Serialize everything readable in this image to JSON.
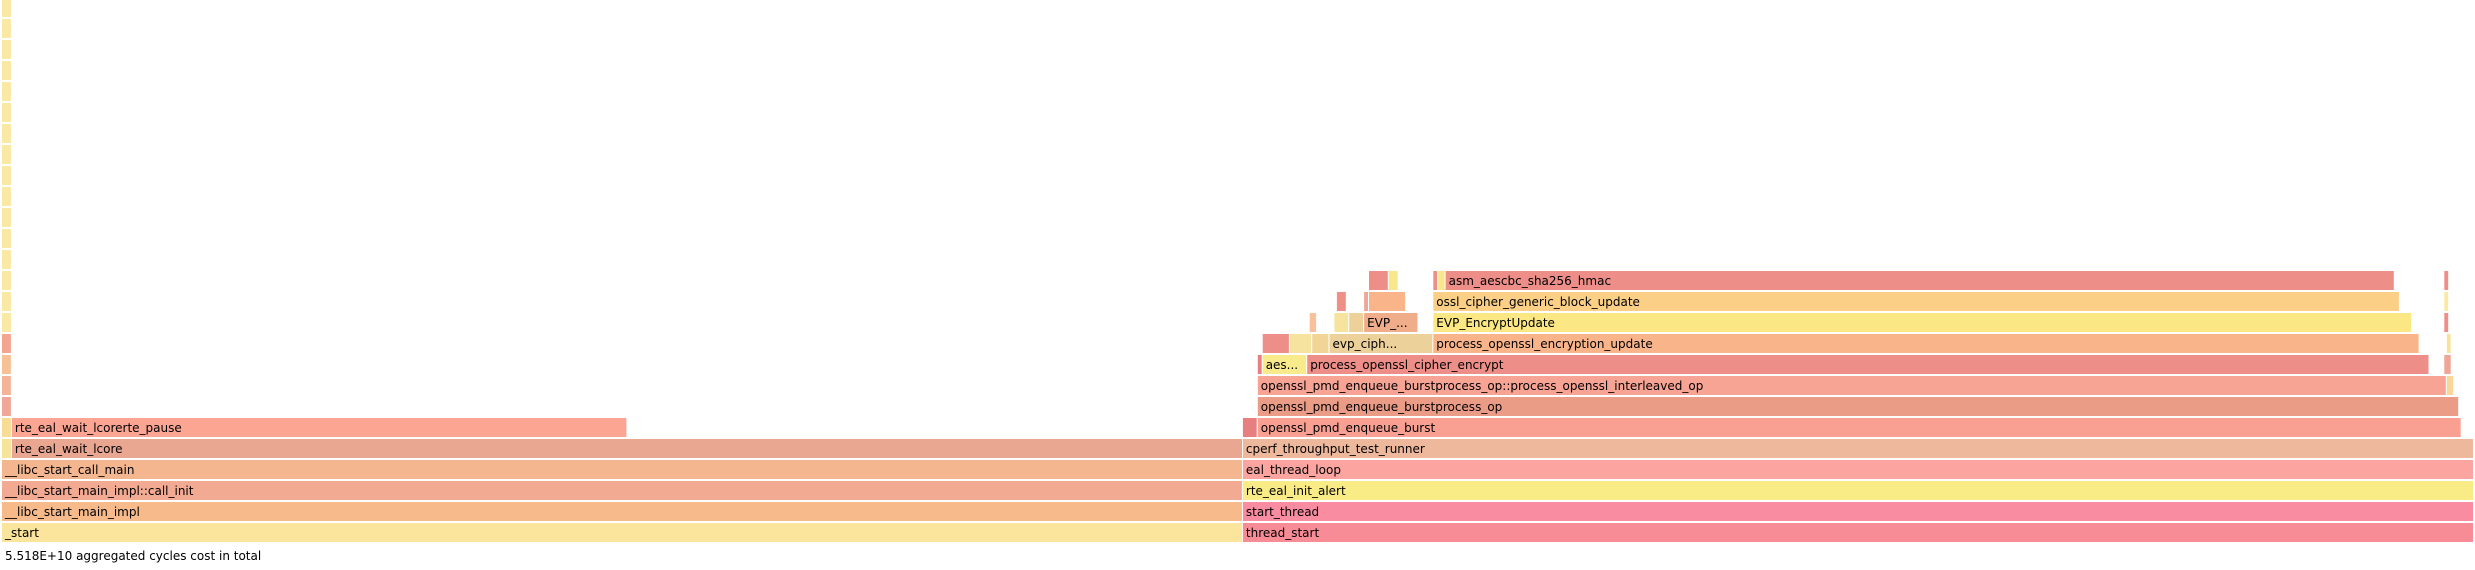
{
  "chart_data": {
    "type": "flamegraph",
    "total_units": 1000,
    "footer": "5.518E+10 aggregated cycles cost in total",
    "frames": [
      {
        "name": "_start",
        "depth": 0,
        "start": 0,
        "width": 502,
        "color": "#fbe49b"
      },
      {
        "name": "thread_start",
        "depth": 0,
        "start": 502,
        "width": 498,
        "color": "#f78c96"
      },
      {
        "name": "__libc_start_main_impl",
        "depth": 1,
        "start": 0,
        "width": 502,
        "color": "#f6ba8b"
      },
      {
        "name": "start_thread",
        "depth": 1,
        "start": 502,
        "width": 498,
        "color": "#f98ca0"
      },
      {
        "name": "__libc_start_main_impl::call_init",
        "depth": 2,
        "start": 0,
        "width": 502,
        "color": "#f3aa92"
      },
      {
        "name": "rte_eal_init_alert",
        "depth": 2,
        "start": 502,
        "width": 498,
        "color": "#f9ec86"
      },
      {
        "name": "__libc_start_call_main",
        "depth": 3,
        "start": 0,
        "width": 502,
        "color": "#f4b68e"
      },
      {
        "name": "eal_thread_loop",
        "depth": 3,
        "start": 502,
        "width": 498,
        "color": "#fba4a0"
      },
      {
        "name": "",
        "depth": 4,
        "start": 0,
        "width": 4,
        "color": "#f6e49a"
      },
      {
        "name": "rte_eal_wait_lcore",
        "depth": 4,
        "start": 4,
        "width": 498,
        "color": "#e9a690"
      },
      {
        "name": "cperf_throughput_test_runner",
        "depth": 4,
        "start": 502,
        "width": 498,
        "color": "#edb89c"
      },
      {
        "name": "",
        "depth": 5,
        "start": 0,
        "width": 4,
        "color": "#f7dc96"
      },
      {
        "name": "rte_eal_wait_lcorerte_pause",
        "depth": 5,
        "start": 4,
        "width": 249,
        "color": "#fba592"
      },
      {
        "name": "",
        "depth": 5,
        "start": 502,
        "width": 6,
        "color": "#e77f80"
      },
      {
        "name": "openssl_pmd_enqueue_burst",
        "depth": 5,
        "start": 508,
        "width": 487,
        "color": "#f9a092"
      },
      {
        "name": "",
        "depth": 6,
        "start": 0,
        "width": 4,
        "color": "#f0a79a"
      },
      {
        "name": "openssl_pmd_enqueue_burstprocess_op",
        "depth": 6,
        "start": 508,
        "width": 486,
        "color": "#eb9c86"
      },
      {
        "name": "",
        "depth": 7,
        "start": 0,
        "width": 4,
        "color": "#f4b49a"
      },
      {
        "name": "openssl_pmd_enqueue_burstprocess_op::process_openssl_interleaved_op",
        "depth": 7,
        "start": 508,
        "width": 481,
        "color": "#f7a494"
      },
      {
        "name": "",
        "depth": 7,
        "start": 989,
        "width": 3,
        "color": "#f8d79c"
      },
      {
        "name": "",
        "depth": 8,
        "start": 0,
        "width": 4,
        "color": "#f6c196"
      },
      {
        "name": "",
        "depth": 8,
        "start": 508,
        "width": 2,
        "color": "#e77f80"
      },
      {
        "name": "aes...",
        "depth": 8,
        "start": 510,
        "width": 18,
        "color": "#f9eb8b"
      },
      {
        "name": "process_openssl_cipher_encrypt",
        "depth": 8,
        "start": 528,
        "width": 454,
        "color": "#ee8e88"
      },
      {
        "name": "",
        "depth": 8,
        "start": 988,
        "width": 3,
        "color": "#f0a696"
      },
      {
        "name": "",
        "depth": 9,
        "start": 0,
        "width": 4,
        "color": "#f4a592"
      },
      {
        "name": "",
        "depth": 9,
        "start": 510,
        "width": 11,
        "color": "#ee8e88"
      },
      {
        "name": "",
        "depth": 9,
        "start": 521,
        "width": 9,
        "color": "#f7e3a0"
      },
      {
        "name": "",
        "depth": 9,
        "start": 530,
        "width": 7,
        "color": "#f0d597"
      },
      {
        "name": "evp_ciph...",
        "depth": 9,
        "start": 537,
        "width": 42,
        "color": "#ecd19a"
      },
      {
        "name": "process_openssl_encryption_update",
        "depth": 9,
        "start": 579,
        "width": 399,
        "color": "#f9b48a"
      },
      {
        "name": "",
        "depth": 9,
        "start": 989,
        "width": 2,
        "color": "#f7e3a0"
      },
      {
        "name": "",
        "depth": 10,
        "start": 0,
        "width": 4,
        "color": "#f9e9a4"
      },
      {
        "name": "",
        "depth": 10,
        "start": 529,
        "width": 3,
        "color": "#f8c19c"
      },
      {
        "name": "",
        "depth": 10,
        "start": 539,
        "width": 6,
        "color": "#f6e39e"
      },
      {
        "name": "",
        "depth": 10,
        "start": 545,
        "width": 6,
        "color": "#eed09a"
      },
      {
        "name": "EVP_...",
        "depth": 10,
        "start": 551,
        "width": 22,
        "color": "#f0ad8a"
      },
      {
        "name": "EVP_EncryptUpdate",
        "depth": 10,
        "start": 579,
        "width": 396,
        "color": "#fbe884"
      },
      {
        "name": "",
        "depth": 10,
        "start": 988,
        "width": 2,
        "color": "#ee8e88"
      },
      {
        "name": "",
        "depth": 11,
        "start": 0,
        "width": 4,
        "color": "#f9e9a4"
      },
      {
        "name": "",
        "depth": 11,
        "start": 540,
        "width": 4,
        "color": "#ef8f86"
      },
      {
        "name": "",
        "depth": 11,
        "start": 551,
        "width": 2,
        "color": "#f0a696"
      },
      {
        "name": "",
        "depth": 11,
        "start": 553,
        "width": 15,
        "color": "#f9b48a"
      },
      {
        "name": "ossl_cipher_generic_block_update",
        "depth": 11,
        "start": 579,
        "width": 391,
        "color": "#fbd086"
      },
      {
        "name": "",
        "depth": 11,
        "start": 988,
        "width": 2,
        "color": "#f9e9a4"
      },
      {
        "name": "",
        "depth": 12,
        "start": 0,
        "width": 4,
        "color": "#f9e9a4"
      },
      {
        "name": "",
        "depth": 12,
        "start": 553,
        "width": 8,
        "color": "#ee8e88"
      },
      {
        "name": "",
        "depth": 12,
        "start": 561,
        "width": 4,
        "color": "#f8e88b"
      },
      {
        "name": "",
        "depth": 12,
        "start": 579,
        "width": 2,
        "color": "#ee8e88"
      },
      {
        "name": "",
        "depth": 12,
        "start": 581,
        "width": 3,
        "color": "#f8e88b"
      },
      {
        "name": "asm_aescbc_sha256_hmac",
        "depth": 12,
        "start": 584,
        "width": 384,
        "color": "#ee8e88"
      },
      {
        "name": "",
        "depth": 12,
        "start": 988,
        "width": 2,
        "color": "#ee8e88"
      },
      {
        "name": "",
        "depth": 13,
        "start": 0,
        "width": 4,
        "color": "#f9e9a4"
      },
      {
        "name": "",
        "depth": 14,
        "start": 0,
        "width": 4,
        "color": "#f9e9a4"
      },
      {
        "name": "",
        "depth": 15,
        "start": 0,
        "width": 4,
        "color": "#f9e9a4"
      },
      {
        "name": "",
        "depth": 16,
        "start": 0,
        "width": 4,
        "color": "#f9e9a4"
      },
      {
        "name": "",
        "depth": 17,
        "start": 0,
        "width": 4,
        "color": "#f9e9a4"
      },
      {
        "name": "",
        "depth": 18,
        "start": 0,
        "width": 4,
        "color": "#f9e9a4"
      },
      {
        "name": "",
        "depth": 19,
        "start": 0,
        "width": 4,
        "color": "#f9e9a4"
      },
      {
        "name": "",
        "depth": 20,
        "start": 0,
        "width": 4,
        "color": "#f9e9a4"
      },
      {
        "name": "",
        "depth": 21,
        "start": 0,
        "width": 4,
        "color": "#f9e9a4"
      },
      {
        "name": "",
        "depth": 22,
        "start": 0,
        "width": 4,
        "color": "#f9e9a4"
      },
      {
        "name": "",
        "depth": 23,
        "start": 0,
        "width": 4,
        "color": "#f9e9a4"
      },
      {
        "name": "",
        "depth": 24,
        "start": 0,
        "width": 4,
        "color": "#f9e9a4"
      },
      {
        "name": "",
        "depth": 25,
        "start": 0,
        "width": 4,
        "color": "#f9e9a4"
      }
    ]
  }
}
